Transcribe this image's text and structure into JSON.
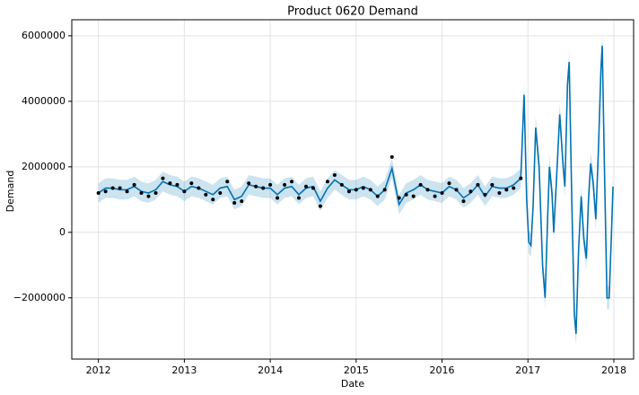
{
  "chart_data": {
    "type": "forecast",
    "title": "Product 0620 Demand",
    "x_label": "Date",
    "y_label": "Demand",
    "xlim": [
      2011.69,
      2018.23
    ],
    "ylim": [
      -3870000,
      6490000
    ],
    "xticks": [
      2012,
      2013,
      2014,
      2015,
      2016,
      2017,
      2018
    ],
    "yticks": [
      {
        "value": -2000000,
        "label": "−2000000"
      },
      0,
      2000000,
      4000000,
      6000000
    ],
    "grid": true,
    "observed": {
      "color": "#000000",
      "x": [
        2012,
        2012.083,
        2012.167,
        2012.25,
        2012.333,
        2012.417,
        2012.5,
        2012.583,
        2012.667,
        2012.75,
        2012.833,
        2012.917,
        2013,
        2013.083,
        2013.167,
        2013.25,
        2013.333,
        2013.417,
        2013.5,
        2013.583,
        2013.667,
        2013.75,
        2013.833,
        2013.917,
        2014,
        2014.083,
        2014.167,
        2014.25,
        2014.333,
        2014.417,
        2014.5,
        2014.583,
        2014.667,
        2014.75,
        2014.833,
        2014.917,
        2015,
        2015.083,
        2015.167,
        2015.25,
        2015.333,
        2015.417,
        2015.5,
        2015.583,
        2015.667,
        2015.75,
        2015.833,
        2015.917,
        2016,
        2016.083,
        2016.167,
        2016.25,
        2016.333,
        2016.417,
        2016.5,
        2016.583,
        2016.667,
        2016.75,
        2016.833,
        2016.917
      ],
      "values": [
        1200000,
        1250000,
        1350000,
        1350000,
        1250000,
        1450000,
        1200000,
        1100000,
        1200000,
        1650000,
        1500000,
        1450000,
        1250000,
        1500000,
        1350000,
        1150000,
        1000000,
        1200000,
        1550000,
        900000,
        950000,
        1500000,
        1400000,
        1350000,
        1450000,
        1050000,
        1450000,
        1550000,
        1050000,
        1400000,
        1350000,
        800000,
        1550000,
        1750000,
        1450000,
        1250000,
        1300000,
        1350000,
        1300000,
        1100000,
        1300000,
        2300000,
        1050000,
        1150000,
        1100000,
        1450000,
        1300000,
        1100000,
        1200000,
        1500000,
        1300000,
        950000,
        1250000,
        1450000,
        1150000,
        1450000,
        1200000,
        1300000,
        1350000,
        1650000
      ]
    },
    "forecast": {
      "color": "#0072B2",
      "x": [
        2012,
        2012.083,
        2012.167,
        2012.25,
        2012.333,
        2012.417,
        2012.5,
        2012.583,
        2012.667,
        2012.75,
        2012.833,
        2012.917,
        2013,
        2013.083,
        2013.167,
        2013.25,
        2013.333,
        2013.417,
        2013.5,
        2013.583,
        2013.667,
        2013.75,
        2013.833,
        2013.917,
        2014,
        2014.083,
        2014.167,
        2014.25,
        2014.333,
        2014.417,
        2014.5,
        2014.583,
        2014.667,
        2014.75,
        2014.833,
        2014.917,
        2015,
        2015.083,
        2015.167,
        2015.25,
        2015.333,
        2015.417,
        2015.5,
        2015.583,
        2015.667,
        2015.75,
        2015.833,
        2015.917,
        2016,
        2016.083,
        2016.167,
        2016.25,
        2016.333,
        2016.417,
        2016.5,
        2016.583,
        2016.667,
        2016.75,
        2016.833,
        2016.917,
        2016.955,
        2016.985,
        2017.01,
        2017.035,
        2017.06,
        2017.09,
        2017.13,
        2017.17,
        2017.2,
        2017.23,
        2017.25,
        2017.28,
        2017.3,
        2017.33,
        2017.37,
        2017.41,
        2017.43,
        2017.46,
        2017.48,
        2017.51,
        2017.54,
        2017.56,
        2017.59,
        2017.62,
        2017.65,
        2017.68,
        2017.705,
        2017.73,
        2017.76,
        2017.79,
        2017.82,
        2017.85,
        2017.865,
        2017.89,
        2017.92,
        2017.945,
        2017.97,
        2017.99
      ],
      "values": [
        1200000,
        1350000,
        1350000,
        1300000,
        1300000,
        1400000,
        1250000,
        1200000,
        1300000,
        1550000,
        1450000,
        1400000,
        1250000,
        1400000,
        1350000,
        1250000,
        1150000,
        1350000,
        1400000,
        1000000,
        1100000,
        1450000,
        1400000,
        1350000,
        1350000,
        1150000,
        1350000,
        1400000,
        1150000,
        1350000,
        1400000,
        950000,
        1350000,
        1600000,
        1450000,
        1300000,
        1300000,
        1400000,
        1300000,
        1100000,
        1300000,
        1950000,
        850000,
        1200000,
        1300000,
        1450000,
        1300000,
        1250000,
        1200000,
        1400000,
        1300000,
        1050000,
        1200000,
        1450000,
        1100000,
        1400000,
        1350000,
        1350000,
        1450000,
        1650000,
        4200000,
        1000000,
        -300000,
        -400000,
        800000,
        3200000,
        2000000,
        -1000000,
        -2000000,
        500000,
        2000000,
        1200000,
        0,
        1500000,
        3600000,
        2000000,
        1400000,
        4500000,
        5200000,
        1000000,
        -2500000,
        -3100000,
        -500000,
        1100000,
        -200000,
        -800000,
        1000000,
        2100000,
        1500000,
        400000,
        2500000,
        5000000,
        5700000,
        2000000,
        -2000000,
        -2000000,
        -200000,
        1400000
      ],
      "lower": [
        900000,
        1050000,
        1050000,
        1000000,
        1000000,
        1100000,
        950000,
        900000,
        1000000,
        1250000,
        1150000,
        1100000,
        950000,
        1100000,
        1050000,
        950000,
        850000,
        1050000,
        1100000,
        700000,
        800000,
        1150000,
        1100000,
        1050000,
        1050000,
        850000,
        1050000,
        1100000,
        850000,
        1050000,
        1100000,
        650000,
        1050000,
        1300000,
        1150000,
        1000000,
        1000000,
        1100000,
        1000000,
        800000,
        1000000,
        1650000,
        550000,
        900000,
        1000000,
        1150000,
        1000000,
        950000,
        900000,
        1100000,
        1000000,
        750000,
        900000,
        1150000,
        800000,
        1100000,
        1050000,
        1050000,
        1150000,
        1350000,
        3850000,
        650000,
        -650000,
        -750000,
        450000,
        2850000,
        1650000,
        -1350000,
        -2350000,
        150000,
        1650000,
        850000,
        -350000,
        1150000,
        3250000,
        1650000,
        1050000,
        4150000,
        4850000,
        650000,
        -2850000,
        -3450000,
        -850000,
        750000,
        -550000,
        -1150000,
        650000,
        1750000,
        1150000,
        50000,
        2150000,
        4650000,
        5350000,
        1650000,
        -2350000,
        -2350000,
        -550000,
        1050000
      ],
      "upper": [
        1500000,
        1650000,
        1650000,
        1600000,
        1600000,
        1700000,
        1550000,
        1500000,
        1600000,
        1850000,
        1750000,
        1700000,
        1550000,
        1700000,
        1650000,
        1550000,
        1450000,
        1650000,
        1700000,
        1300000,
        1400000,
        1750000,
        1700000,
        1650000,
        1650000,
        1450000,
        1650000,
        1700000,
        1450000,
        1650000,
        1700000,
        1250000,
        1650000,
        1900000,
        1750000,
        1600000,
        1600000,
        1700000,
        1600000,
        1400000,
        1600000,
        2250000,
        1150000,
        1500000,
        1600000,
        1750000,
        1600000,
        1550000,
        1500000,
        1700000,
        1600000,
        1350000,
        1500000,
        1750000,
        1400000,
        1700000,
        1650000,
        1650000,
        1750000,
        1950000,
        4550000,
        1350000,
        50000,
        -50000,
        1150000,
        3550000,
        2350000,
        -650000,
        -1650000,
        850000,
        2350000,
        1550000,
        350000,
        1850000,
        3950000,
        2350000,
        1750000,
        4850000,
        5550000,
        1350000,
        -2150000,
        -2750000,
        -150000,
        1450000,
        150000,
        -450000,
        1350000,
        2450000,
        1850000,
        750000,
        2850000,
        5350000,
        6050000,
        2350000,
        -1650000,
        -1650000,
        150000,
        1750000
      ]
    }
  }
}
